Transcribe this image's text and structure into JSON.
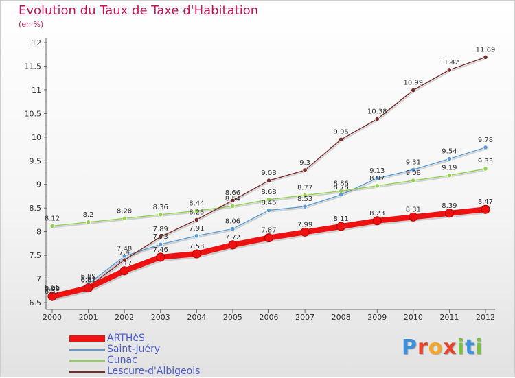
{
  "title": "Evolution du Taux de Taxe d'Habitation",
  "subtitle": "(en %)",
  "logo": {
    "text": "Proxiti",
    "letters": [
      {
        "ch": "P",
        "color": "#3d8fd8"
      },
      {
        "ch": "r",
        "color": "#e8432d"
      },
      {
        "ch": "o",
        "color": "#f5a623"
      },
      {
        "ch": "x",
        "color": "#e8432d"
      },
      {
        "ch": "i",
        "color": "#7cc242"
      },
      {
        "ch": "t",
        "color": "#3d8fd8"
      },
      {
        "ch": "i",
        "color": "#7cc242"
      }
    ]
  },
  "chart_data": {
    "type": "line",
    "title": "Evolution du Taux de Taxe d'Habitation",
    "subtitle": "(en %)",
    "x": [
      "2000",
      "2001",
      "2002",
      "2003",
      "2004",
      "2005",
      "2006",
      "2007",
      "2008",
      "2009",
      "2010",
      "2011",
      "2012"
    ],
    "ylim": [
      6.5,
      12
    ],
    "yticks": [
      "6.5",
      "7",
      "7.5",
      "8",
      "8.5",
      "9",
      "9.5",
      "10",
      "10.5",
      "11",
      "11.5",
      "12"
    ],
    "grid": false,
    "legend_position": "bottom-left",
    "series": [
      {
        "name": "ARTHèS",
        "color": "#ee1111",
        "width": "thick",
        "values": [
          6.63,
          6.81,
          7.17,
          7.46,
          7.53,
          7.72,
          7.87,
          7.99,
          8.11,
          8.23,
          8.31,
          8.39,
          8.47
        ],
        "labels": [
          "6.63",
          "6.81",
          "7.17",
          "7.46",
          "7.53",
          "7.72",
          "7.87",
          "7.99",
          "8.11",
          "8.23",
          "8.31",
          "8.39",
          "8.47"
        ]
      },
      {
        "name": "Saint-Juéry",
        "color": "#5b9bd5",
        "width": "thin",
        "values": [
          6.57,
          6.89,
          7.48,
          7.73,
          7.91,
          8.06,
          8.45,
          8.53,
          8.78,
          9.13,
          9.31,
          9.54,
          9.78
        ],
        "labels": [
          "6.57",
          "6.89",
          "7.48",
          "7.73",
          "7.91",
          "8.06",
          "8.45",
          "8.53",
          "8.78",
          "9.13",
          "9.31",
          "9.54",
          "9.78"
        ]
      },
      {
        "name": "Cunac",
        "color": "#92d050",
        "width": "thin",
        "values": [
          8.12,
          8.2,
          8.28,
          8.36,
          8.44,
          8.54,
          8.68,
          8.77,
          8.86,
          8.97,
          9.08,
          9.19,
          9.33
        ],
        "labels": [
          "8.12",
          "8.2",
          "8.28",
          "8.36",
          "8.44",
          "8.54",
          "8.68",
          "8.77",
          "8.86",
          "8.97",
          "9.08",
          "9.19",
          "9.33"
        ]
      },
      {
        "name": "Lescure-d'Albigeois",
        "color": "#7b2c2c",
        "width": "thin",
        "values": [
          6.66,
          6.83,
          7.4,
          7.89,
          8.25,
          8.66,
          9.08,
          9.3,
          9.95,
          10.38,
          10.99,
          11.42,
          11.69
        ],
        "labels": [
          "6.66",
          "6.83",
          "7.4",
          "7.89",
          "8.25",
          "8.66",
          "9.08",
          "9.3",
          "9.95",
          "10.38",
          "10.99",
          "11.42",
          "11.69"
        ]
      }
    ]
  }
}
